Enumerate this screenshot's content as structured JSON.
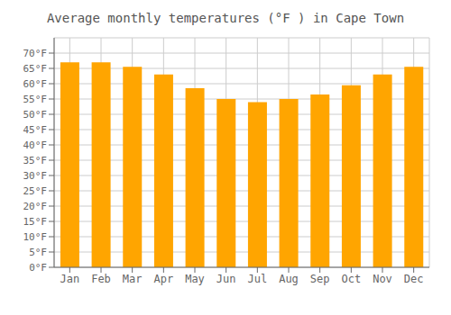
{
  "chart_data": {
    "type": "bar",
    "title": "Average monthly temperatures (°F ) in Cape Town",
    "categories": [
      "Jan",
      "Feb",
      "Mar",
      "Apr",
      "May",
      "Jun",
      "Jul",
      "Aug",
      "Sep",
      "Oct",
      "Nov",
      "Dec"
    ],
    "values": [
      67,
      67,
      65.5,
      63,
      58.5,
      55,
      54,
      55,
      56.5,
      59.5,
      63,
      65.5
    ],
    "color": "#FFA500",
    "ylim": [
      0,
      75
    ],
    "yticks": [
      {
        "value": 0,
        "label": "0°F"
      },
      {
        "value": 5,
        "label": "5°F"
      },
      {
        "value": 10,
        "label": "10°F"
      },
      {
        "value": 15,
        "label": "15°F"
      },
      {
        "value": 20,
        "label": "20°F"
      },
      {
        "value": 25,
        "label": "25°F"
      },
      {
        "value": 30,
        "label": "30°F"
      },
      {
        "value": 35,
        "label": "35°F"
      },
      {
        "value": 40,
        "label": "40°F"
      },
      {
        "value": 45,
        "label": "45°F"
      },
      {
        "value": 50,
        "label": "50°F"
      },
      {
        "value": 55,
        "label": "55°F"
      },
      {
        "value": 60,
        "label": "60°F"
      },
      {
        "value": 65,
        "label": "65°F"
      },
      {
        "value": 70,
        "label": "70°F"
      }
    ],
    "grid": true
  }
}
